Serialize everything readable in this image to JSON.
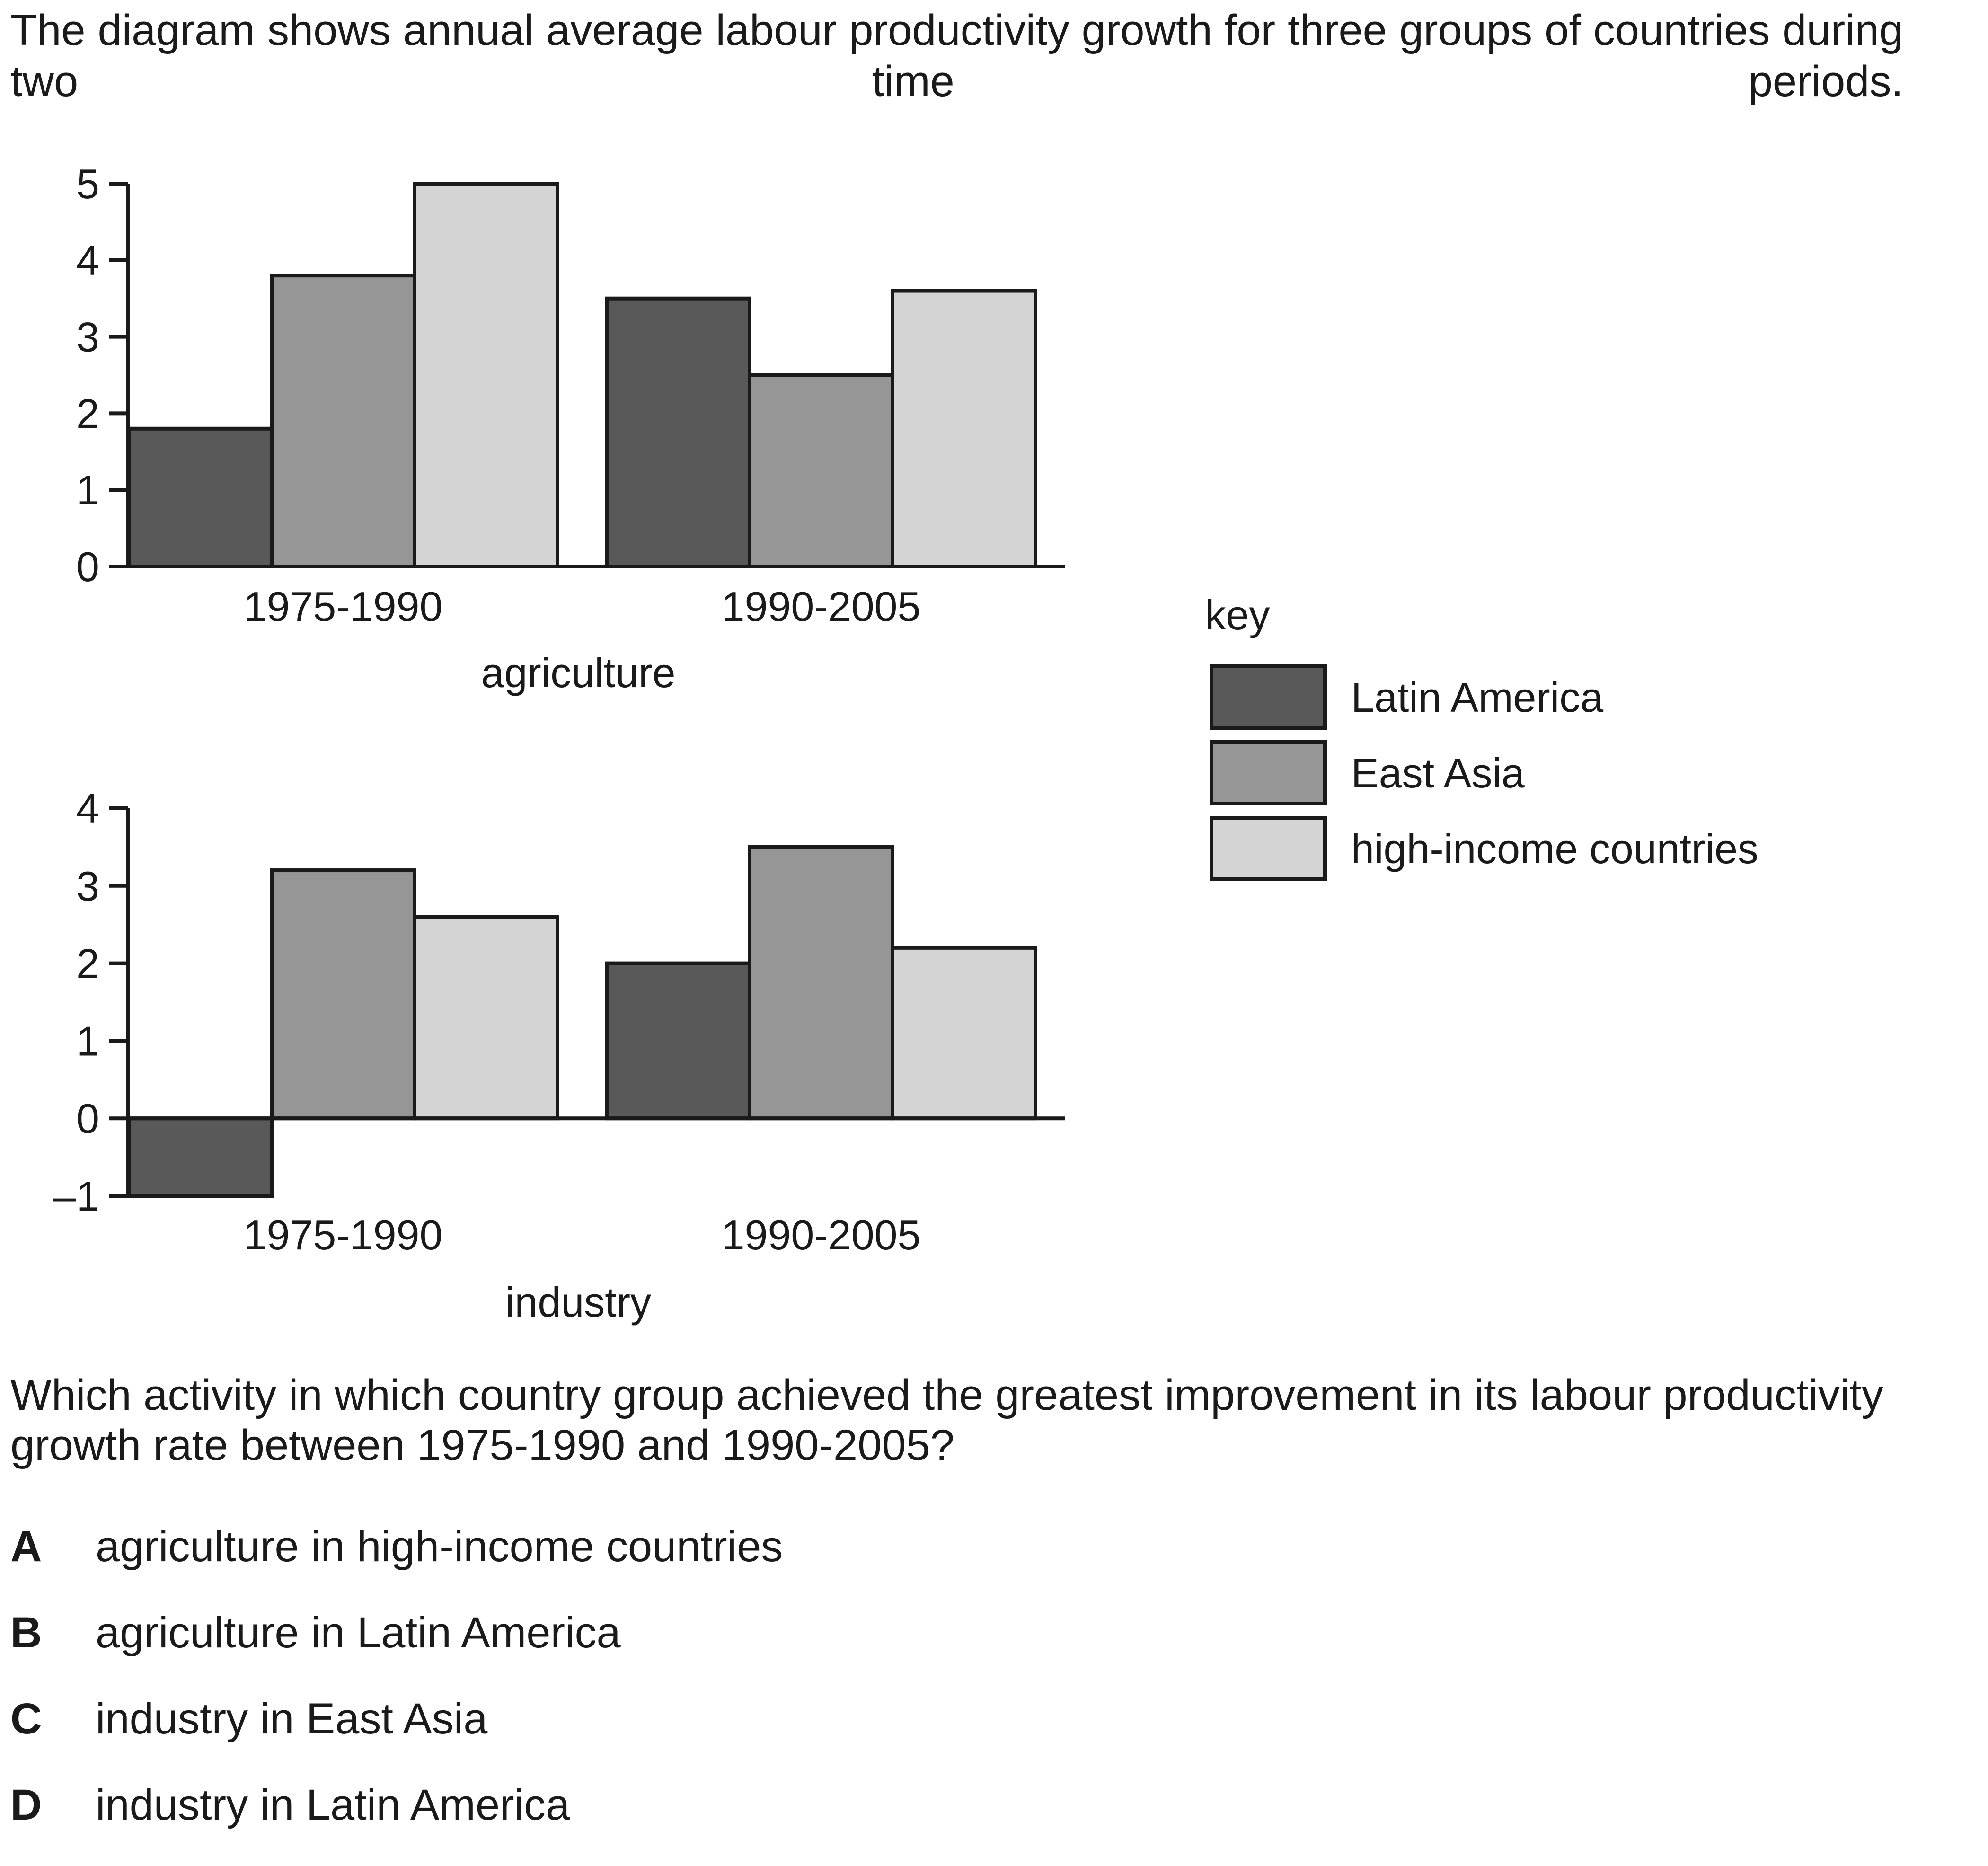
{
  "intro": "The diagram shows annual average labour productivity growth for three groups of countries during two time periods.",
  "question": "Which activity in which country group achieved the greatest improvement in its labour productivity growth rate between 1975-1990 and 1990-2005?",
  "options": [
    {
      "letter": "A",
      "text": "agriculture in high-income countries"
    },
    {
      "letter": "B",
      "text": "agriculture in Latin America"
    },
    {
      "letter": "C",
      "text": "industry in East Asia"
    },
    {
      "letter": "D",
      "text": "industry in Latin America"
    }
  ],
  "legend": {
    "title": "key",
    "items": [
      {
        "label": "Latin America",
        "color": "#595959"
      },
      {
        "label": "East Asia",
        "color": "#969696"
      },
      {
        "label": "high-income countries",
        "color": "#d4d4d4"
      }
    ]
  },
  "chart_data": [
    {
      "type": "bar",
      "xlabel": "agriculture",
      "ylabel": "",
      "categories": [
        "1975-1990",
        "1990-2005"
      ],
      "ylim": [
        0,
        5
      ],
      "yticks": [
        0,
        1,
        2,
        3,
        4,
        5
      ],
      "series": [
        {
          "name": "Latin America",
          "values": [
            1.8,
            3.5
          ]
        },
        {
          "name": "East Asia",
          "values": [
            3.8,
            2.5
          ]
        },
        {
          "name": "high-income countries",
          "values": [
            5.0,
            3.6
          ]
        }
      ]
    },
    {
      "type": "bar",
      "xlabel": "industry",
      "ylabel": "",
      "categories": [
        "1975-1990",
        "1990-2005"
      ],
      "ylim": [
        -1,
        4
      ],
      "yticks": [
        -1,
        0,
        1,
        2,
        3,
        4
      ],
      "ytick_labels": [
        "–1",
        "0",
        "1",
        "2",
        "3",
        "4"
      ],
      "series": [
        {
          "name": "Latin America",
          "values": [
            -1.0,
            2.0
          ]
        },
        {
          "name": "East Asia",
          "values": [
            3.2,
            3.5
          ]
        },
        {
          "name": "high-income countries",
          "values": [
            2.6,
            2.2
          ]
        }
      ]
    }
  ]
}
